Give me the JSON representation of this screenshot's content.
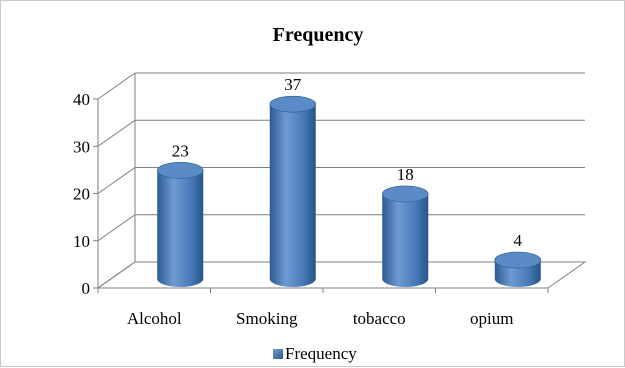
{
  "chart_data": {
    "type": "bar",
    "style": "3d-cylinder",
    "title": "Frequency",
    "categories": [
      "Alcohol",
      "Smoking",
      "tobacco",
      "opium"
    ],
    "series": [
      {
        "name": "Frequency",
        "values": [
          23,
          37,
          18,
          4
        ]
      }
    ],
    "ylim": [
      0,
      40
    ],
    "yticks": [
      0,
      10,
      20,
      30,
      40
    ],
    "grid": true,
    "legend": "bottom",
    "data_labels": true,
    "colors": {
      "bar": "#4a7ebb",
      "bar_dark": "#2c5a92",
      "bar_light": "#6e9bd1",
      "bar_top": "#5b8bc6",
      "grid": "#7f7f7f",
      "axis": "#7f7f7f",
      "text": "#000000"
    }
  }
}
